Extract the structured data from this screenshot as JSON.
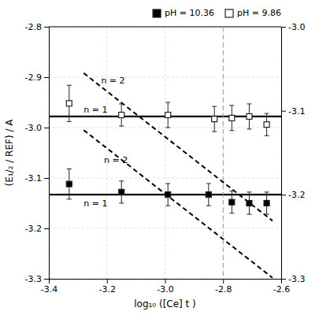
{
  "chart_data": {
    "type": "scatter",
    "x_label": "log₁₀ ([Ce] t )",
    "y_label": "(E₁/₂ / REF) / A",
    "xlim": [
      -3.4,
      -2.6
    ],
    "xticks": [
      -3.4,
      -3.2,
      {
        "value": -3.0,
        "label": "-3.0"
      },
      -2.8,
      -2.6
    ],
    "ylim": [
      -3.3,
      -2.8
    ],
    "yticks": [
      -3.3,
      -3.2,
      -3.1,
      {
        "value": -3.0,
        "label": "-3.0"
      },
      -2.9,
      -2.8
    ],
    "y2lim": [
      -3.3,
      -3.0
    ],
    "y2ticks": [
      -3.3,
      -3.2,
      -3.1,
      {
        "value": -3.0,
        "label": "-3.0"
      }
    ],
    "grid": true,
    "legend": "upper right",
    "series": [
      {
        "name": "pH = 10.36",
        "color": "black",
        "marker": "square",
        "x": [
          -3.33,
          -3.15,
          -2.99,
          -2.85,
          -2.77,
          -2.71,
          -2.65
        ],
        "values": [
          -3.112,
          -3.128,
          -3.133,
          -3.133,
          -3.148,
          -3.15,
          -3.15
        ],
        "error": [
          0.03,
          0.022,
          0.022,
          0.022,
          0.022,
          0.022,
          0.022
        ]
      },
      {
        "name": "pH = 9.86",
        "color": "white",
        "marker": "square",
        "x": [
          -3.33,
          -3.15,
          -2.99,
          -2.83,
          -2.77,
          -2.71,
          -2.65
        ],
        "values": [
          -2.952,
          -2.975,
          -2.975,
          -2.983,
          -2.981,
          -2.978,
          -2.994
        ],
        "error": [
          0.036,
          0.022,
          0.025,
          0.025,
          0.025,
          0.025,
          0.022
        ]
      }
    ],
    "reference_lines": [
      {
        "x": [
          -3.28,
          -2.63
        ],
        "y": [
          -2.892,
          -3.185
        ],
        "line_style": "dashed"
      },
      {
        "x": [
          -3.28,
          -2.63
        ],
        "y": [
          -3.005,
          -3.298
        ],
        "line_style": "dashed"
      },
      {
        "y": -2.978,
        "line_style": "solid"
      },
      {
        "y": -3.133,
        "line_style": "solid"
      },
      {
        "x": -2.8,
        "line_style": "dashed"
      }
    ],
    "annotations": [
      {
        "text": "n = 1",
        "x": -3.28,
        "y": -2.966
      },
      {
        "text": "n = 2",
        "x": -3.22,
        "y": -2.908
      },
      {
        "text": "n = 1",
        "x": -3.28,
        "y": -3.152
      },
      {
        "text": "n = 2",
        "x": -3.21,
        "y": -3.065
      }
    ]
  }
}
